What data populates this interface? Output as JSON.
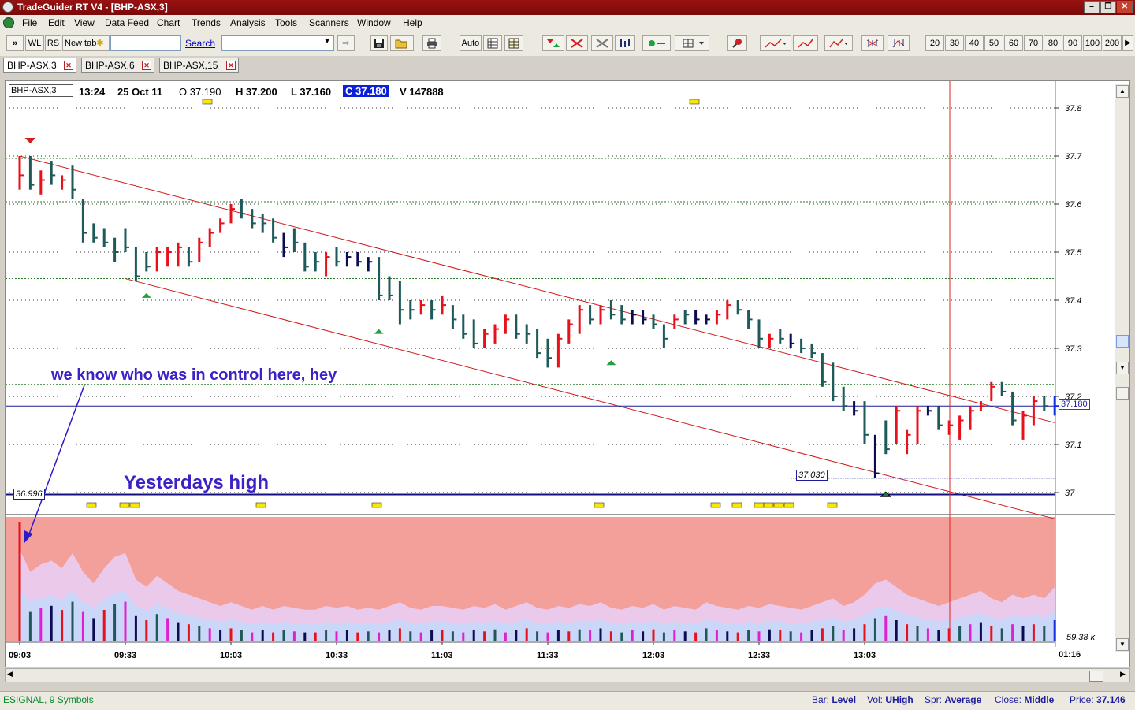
{
  "window": {
    "title": "TradeGuider RT V4 - [BHP-ASX,3]"
  },
  "menu": [
    "File",
    "Edit",
    "View",
    "Data Feed",
    "Chart",
    "Trends",
    "Analysis",
    "Tools",
    "Scanners",
    "Window",
    "Help"
  ],
  "toolbar": {
    "wl_label": "WL",
    "rs_label": "RS",
    "newtab_label": "New tab",
    "search_label": "Search",
    "auto_label": "Auto",
    "period_buttons": [
      "20",
      "30",
      "40",
      "50",
      "60",
      "70",
      "80",
      "90",
      "100",
      "200"
    ]
  },
  "tabs": [
    {
      "label": "BHP-ASX,3"
    },
    {
      "label": "BHP-ASX,6"
    },
    {
      "label": "BHP-ASX,15"
    }
  ],
  "chart_info": {
    "symbol": "BHP-ASX,3",
    "time": "13:24",
    "date": "25 Oct 11",
    "open": "O 37.190",
    "high": "H 37.200",
    "low": "L 37.160",
    "close": "C 37.180",
    "volume": "V 147888"
  },
  "annotations": {
    "control_note": "we know who was in control here, hey",
    "yesterday_high": "Yesterdays high",
    "yesterday_high_value": "36.996",
    "low_value": "37.030",
    "last_price": "37.180"
  },
  "volume_pane": {
    "right_label": "59.38 k"
  },
  "time_extra_label": "01:16",
  "chart_data": {
    "type": "bar",
    "subtype": "ohlc",
    "interval_minutes": 3,
    "y_ticks": [
      "37",
      "37.1",
      "37.2",
      "37.3",
      "37.4",
      "37.5",
      "37.6",
      "37.7",
      "37.8"
    ],
    "ylim": [
      36.95,
      37.85
    ],
    "x_ticks": [
      "09:03",
      "09:33",
      "10:03",
      "10:33",
      "11:03",
      "11:33",
      "12:03",
      "12:33",
      "13:03"
    ],
    "bars": [
      {
        "h": 37.7,
        "l": 37.63,
        "c": 37.66,
        "color": "red"
      },
      {
        "h": 37.7,
        "l": 37.63,
        "c": 37.64,
        "color": "teal"
      },
      {
        "h": 37.67,
        "l": 37.62,
        "c": 37.65,
        "color": "red"
      },
      {
        "h": 37.69,
        "l": 37.64,
        "c": 37.66,
        "color": "teal"
      },
      {
        "h": 37.66,
        "l": 37.63,
        "c": 37.65,
        "color": "red"
      },
      {
        "h": 37.68,
        "l": 37.61,
        "c": 37.63,
        "color": "teal"
      },
      {
        "h": 37.61,
        "l": 37.52,
        "c": 37.54,
        "color": "teal"
      },
      {
        "h": 37.56,
        "l": 37.52,
        "c": 37.53,
        "color": "teal"
      },
      {
        "h": 37.55,
        "l": 37.51,
        "c": 37.52,
        "color": "teal"
      },
      {
        "h": 37.53,
        "l": 37.48,
        "c": 37.5,
        "color": "teal"
      },
      {
        "h": 37.55,
        "l": 37.5,
        "c": 37.51,
        "color": "teal"
      },
      {
        "h": 37.51,
        "l": 37.44,
        "c": 37.45,
        "color": "teal"
      },
      {
        "h": 37.5,
        "l": 37.46,
        "c": 37.47,
        "color": "teal"
      },
      {
        "h": 37.51,
        "l": 37.46,
        "c": 37.5,
        "color": "red"
      },
      {
        "h": 37.51,
        "l": 37.47,
        "c": 37.5,
        "color": "red"
      },
      {
        "h": 37.52,
        "l": 37.47,
        "c": 37.51,
        "color": "red"
      },
      {
        "h": 37.51,
        "l": 37.47,
        "c": 37.48,
        "color": "teal"
      },
      {
        "h": 37.53,
        "l": 37.48,
        "c": 37.52,
        "color": "red"
      },
      {
        "h": 37.55,
        "l": 37.51,
        "c": 37.54,
        "color": "red"
      },
      {
        "h": 37.57,
        "l": 37.54,
        "c": 37.56,
        "color": "red"
      },
      {
        "h": 37.6,
        "l": 37.56,
        "c": 37.59,
        "color": "red"
      },
      {
        "h": 37.61,
        "l": 37.57,
        "c": 37.58,
        "color": "teal"
      },
      {
        "h": 37.59,
        "l": 37.55,
        "c": 37.56,
        "color": "teal"
      },
      {
        "h": 37.58,
        "l": 37.54,
        "c": 37.56,
        "color": "teal"
      },
      {
        "h": 37.57,
        "l": 37.52,
        "c": 37.53,
        "color": "teal"
      },
      {
        "h": 37.54,
        "l": 37.49,
        "c": 37.51,
        "color": "navy"
      },
      {
        "h": 37.55,
        "l": 37.5,
        "c": 37.52,
        "color": "teal"
      },
      {
        "h": 37.52,
        "l": 37.46,
        "c": 37.47,
        "color": "teal"
      },
      {
        "h": 37.5,
        "l": 37.46,
        "c": 37.48,
        "color": "teal"
      },
      {
        "h": 37.5,
        "l": 37.45,
        "c": 37.49,
        "color": "red"
      },
      {
        "h": 37.51,
        "l": 37.47,
        "c": 37.48,
        "color": "teal"
      },
      {
        "h": 37.5,
        "l": 37.47,
        "c": 37.49,
        "color": "navy"
      },
      {
        "h": 37.5,
        "l": 37.47,
        "c": 37.48,
        "color": "navy"
      },
      {
        "h": 37.49,
        "l": 37.46,
        "c": 37.48,
        "color": "navy"
      },
      {
        "h": 37.49,
        "l": 37.4,
        "c": 37.41,
        "color": "teal"
      },
      {
        "h": 37.45,
        "l": 37.4,
        "c": 37.41,
        "color": "teal"
      },
      {
        "h": 37.44,
        "l": 37.35,
        "c": 37.38,
        "color": "teal"
      },
      {
        "h": 37.4,
        "l": 37.36,
        "c": 37.38,
        "color": "teal"
      },
      {
        "h": 37.4,
        "l": 37.37,
        "c": 37.39,
        "color": "red"
      },
      {
        "h": 37.4,
        "l": 37.36,
        "c": 37.38,
        "color": "teal"
      },
      {
        "h": 37.41,
        "l": 37.37,
        "c": 37.39,
        "color": "red"
      },
      {
        "h": 37.39,
        "l": 37.34,
        "c": 37.36,
        "color": "teal"
      },
      {
        "h": 37.37,
        "l": 37.32,
        "c": 37.33,
        "color": "teal"
      },
      {
        "h": 37.36,
        "l": 37.3,
        "c": 37.31,
        "color": "teal"
      },
      {
        "h": 37.34,
        "l": 37.3,
        "c": 37.33,
        "color": "red"
      },
      {
        "h": 37.35,
        "l": 37.31,
        "c": 37.34,
        "color": "red"
      },
      {
        "h": 37.37,
        "l": 37.33,
        "c": 37.36,
        "color": "red"
      },
      {
        "h": 37.37,
        "l": 37.32,
        "c": 37.33,
        "color": "teal"
      },
      {
        "h": 37.35,
        "l": 37.31,
        "c": 37.33,
        "color": "teal"
      },
      {
        "h": 37.34,
        "l": 37.28,
        "c": 37.29,
        "color": "teal"
      },
      {
        "h": 37.32,
        "l": 37.26,
        "c": 37.28,
        "color": "teal"
      },
      {
        "h": 37.33,
        "l": 37.26,
        "c": 37.32,
        "color": "red"
      },
      {
        "h": 37.36,
        "l": 37.31,
        "c": 37.35,
        "color": "red"
      },
      {
        "h": 37.39,
        "l": 37.33,
        "c": 37.38,
        "color": "red"
      },
      {
        "h": 37.39,
        "l": 37.35,
        "c": 37.36,
        "color": "teal"
      },
      {
        "h": 37.39,
        "l": 37.35,
        "c": 37.38,
        "color": "red"
      },
      {
        "h": 37.4,
        "l": 37.36,
        "c": 37.37,
        "color": "teal"
      },
      {
        "h": 37.39,
        "l": 37.35,
        "c": 37.36,
        "color": "teal"
      },
      {
        "h": 37.38,
        "l": 37.35,
        "c": 37.37,
        "color": "navy"
      },
      {
        "h": 37.38,
        "l": 37.35,
        "c": 37.36,
        "color": "navy"
      },
      {
        "h": 37.37,
        "l": 37.34,
        "c": 37.35,
        "color": "teal"
      },
      {
        "h": 37.35,
        "l": 37.3,
        "c": 37.32,
        "color": "teal"
      },
      {
        "h": 37.37,
        "l": 37.34,
        "c": 37.36,
        "color": "red"
      },
      {
        "h": 37.38,
        "l": 37.35,
        "c": 37.37,
        "color": "teal"
      },
      {
        "h": 37.38,
        "l": 37.35,
        "c": 37.36,
        "color": "navy"
      },
      {
        "h": 37.37,
        "l": 37.35,
        "c": 37.36,
        "color": "navy"
      },
      {
        "h": 37.38,
        "l": 37.35,
        "c": 37.37,
        "color": "red"
      },
      {
        "h": 37.4,
        "l": 37.36,
        "c": 37.39,
        "color": "red"
      },
      {
        "h": 37.4,
        "l": 37.37,
        "c": 37.38,
        "color": "teal"
      },
      {
        "h": 37.38,
        "l": 37.34,
        "c": 37.36,
        "color": "teal"
      },
      {
        "h": 37.36,
        "l": 37.3,
        "c": 37.32,
        "color": "teal"
      },
      {
        "h": 37.33,
        "l": 37.3,
        "c": 37.32,
        "color": "red"
      },
      {
        "h": 37.34,
        "l": 37.31,
        "c": 37.32,
        "color": "teal"
      },
      {
        "h": 37.33,
        "l": 37.3,
        "c": 37.31,
        "color": "navy"
      },
      {
        "h": 37.32,
        "l": 37.29,
        "c": 37.3,
        "color": "teal"
      },
      {
        "h": 37.31,
        "l": 37.28,
        "c": 37.29,
        "color": "teal"
      },
      {
        "h": 37.29,
        "l": 37.22,
        "c": 37.23,
        "color": "teal"
      },
      {
        "h": 37.27,
        "l": 37.19,
        "c": 37.2,
        "color": "teal"
      },
      {
        "h": 37.22,
        "l": 37.17,
        "c": 37.18,
        "color": "teal"
      },
      {
        "h": 37.19,
        "l": 37.16,
        "c": 37.17,
        "color": "navy"
      },
      {
        "h": 37.19,
        "l": 37.1,
        "c": 37.12,
        "color": "teal"
      },
      {
        "h": 37.12,
        "l": 37.03,
        "c": 37.04,
        "color": "navy"
      },
      {
        "h": 37.15,
        "l": 37.08,
        "c": 37.09,
        "color": "teal"
      },
      {
        "h": 37.18,
        "l": 37.1,
        "c": 37.17,
        "color": "red"
      },
      {
        "h": 37.13,
        "l": 37.08,
        "c": 37.12,
        "color": "red"
      },
      {
        "h": 37.18,
        "l": 37.1,
        "c": 37.17,
        "color": "red"
      },
      {
        "h": 37.18,
        "l": 37.16,
        "c": 37.17,
        "color": "navy"
      },
      {
        "h": 37.18,
        "l": 37.13,
        "c": 37.14,
        "color": "teal"
      },
      {
        "h": 37.15,
        "l": 37.12,
        "c": 37.14,
        "color": "red"
      },
      {
        "h": 37.16,
        "l": 37.11,
        "c": 37.15,
        "color": "red"
      },
      {
        "h": 37.18,
        "l": 37.13,
        "c": 37.17,
        "color": "red"
      },
      {
        "h": 37.19,
        "l": 37.17,
        "c": 37.18,
        "color": "red"
      },
      {
        "h": 37.23,
        "l": 37.19,
        "c": 37.22,
        "color": "red"
      },
      {
        "h": 37.23,
        "l": 37.2,
        "c": 37.21,
        "color": "teal"
      },
      {
        "h": 37.21,
        "l": 37.14,
        "c": 37.15,
        "color": "teal"
      },
      {
        "h": 37.17,
        "l": 37.11,
        "c": 37.16,
        "color": "red"
      },
      {
        "h": 37.2,
        "l": 37.14,
        "c": 37.19,
        "color": "red"
      },
      {
        "h": 37.2,
        "l": 37.17,
        "c": 37.18,
        "color": "teal"
      },
      {
        "h": 37.2,
        "l": 37.16,
        "c": 37.18,
        "color": "blue"
      }
    ],
    "channel": {
      "upper": [
        [
          37.7,
          37.15
        ]
      ],
      "lower": [
        [
          37.45,
          36.95
        ]
      ]
    },
    "horizontal_lines": [
      {
        "value": 36.996,
        "color": "navy",
        "label": "Yesterdays high"
      },
      {
        "value": 37.18,
        "color": "blue",
        "label": "37.180"
      },
      {
        "value": 37.03,
        "color": "blue",
        "label": "37.030"
      }
    ],
    "volume": [
      120,
      28,
      32,
      34,
      30,
      38,
      28,
      22,
      30,
      36,
      38,
      24,
      20,
      26,
      22,
      18,
      16,
      14,
      12,
      10,
      12,
      10,
      8,
      10,
      8,
      10,
      9,
      8,
      8,
      10,
      9,
      10,
      8,
      9,
      8,
      10,
      12,
      9,
      8,
      10,
      10,
      9,
      8,
      10,
      9,
      11,
      8,
      10,
      12,
      9,
      8,
      10,
      9,
      11,
      10,
      12,
      9,
      8,
      10,
      9,
      11,
      8,
      10,
      9,
      8,
      12,
      10,
      9,
      8,
      10,
      9,
      11,
      10,
      9,
      8,
      10,
      12,
      14,
      10,
      12,
      16,
      22,
      24,
      20,
      16,
      14,
      12,
      10,
      12,
      14,
      16,
      18,
      14,
      12,
      16,
      14,
      16,
      14,
      20
    ],
    "volume_colors": "mixed red/teal/magenta/navy"
  }
}
